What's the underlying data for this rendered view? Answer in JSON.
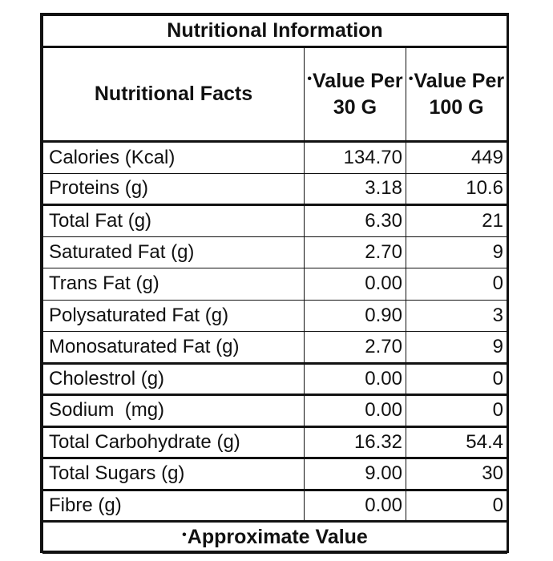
{
  "table": {
    "title": "Nutritional Information",
    "headers": {
      "facts": "Nutritional Facts",
      "per_30g_marker": "•",
      "per_30g": "Value Per 30 G",
      "per_100g_marker": "•",
      "per_100g": "Value Per 100 G"
    },
    "rows": [
      {
        "label": "Calories (Kcal)",
        "per_30g": "134.70",
        "per_100g": "449"
      },
      {
        "label": "Proteins (g)",
        "per_30g": "3.18",
        "per_100g": "10.6"
      },
      {
        "label": "Total Fat (g)",
        "per_30g": "6.30",
        "per_100g": "21"
      },
      {
        "label": "Saturated Fat (g)",
        "per_30g": "2.70",
        "per_100g": "9"
      },
      {
        "label": "Trans Fat (g)",
        "per_30g": "0.00",
        "per_100g": "0"
      },
      {
        "label": "Polysaturated Fat (g)",
        "per_30g": "0.90",
        "per_100g": "3"
      },
      {
        "label": "Monosaturated Fat (g)",
        "per_30g": "2.70",
        "per_100g": "9"
      },
      {
        "label": "Cholestrol (g)",
        "per_30g": "0.00",
        "per_100g": "0"
      },
      {
        "label": "Sodium  (mg)",
        "per_30g": "0.00",
        "per_100g": "0"
      },
      {
        "label": "Total Carbohydrate (g)",
        "per_30g": "16.32",
        "per_100g": "54.4"
      },
      {
        "label": "Total Sugars (g)",
        "per_30g": "9.00",
        "per_100g": "30"
      },
      {
        "label": "Fibre (g)",
        "per_30g": "0.00",
        "per_100g": "0"
      }
    ],
    "footer_marker": "•",
    "footer": "Approximate Value"
  }
}
